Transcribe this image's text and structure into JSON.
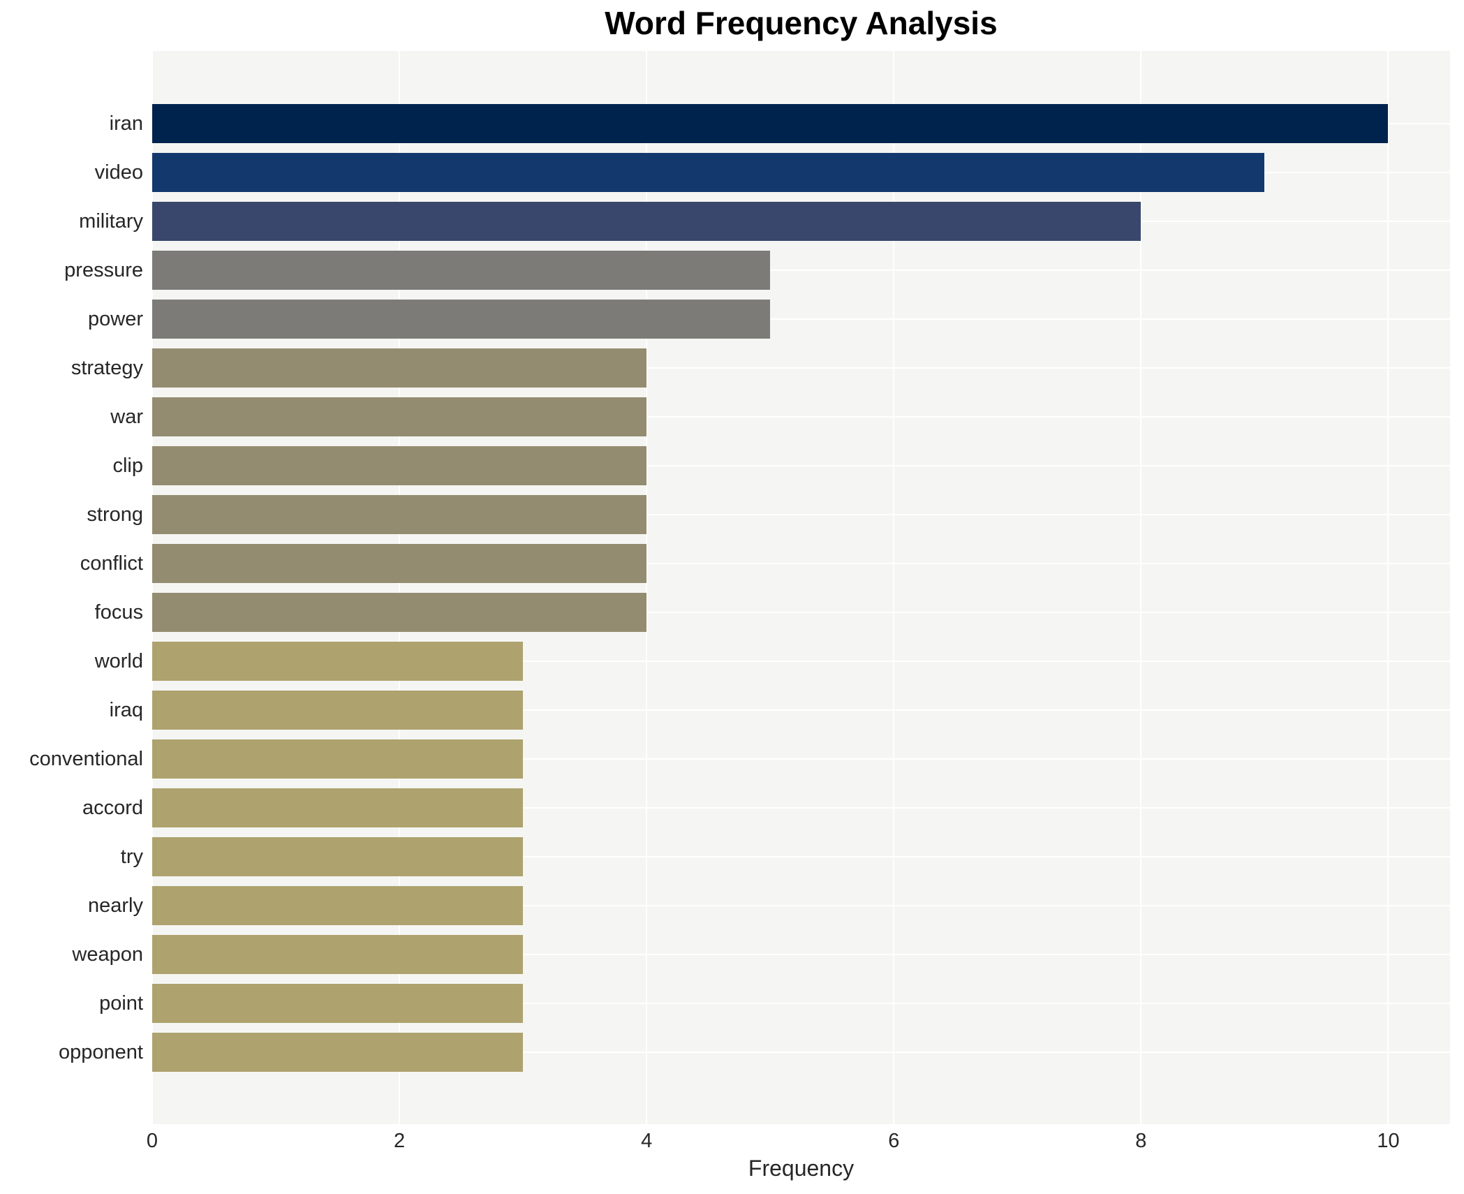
{
  "chart_data": {
    "type": "bar",
    "orientation": "horizontal",
    "title": "Word Frequency Analysis",
    "xlabel": "Frequency",
    "ylabel": "",
    "categories": [
      "iran",
      "video",
      "military",
      "pressure",
      "power",
      "strategy",
      "war",
      "clip",
      "strong",
      "conflict",
      "focus",
      "world",
      "iraq",
      "conventional",
      "accord",
      "try",
      "nearly",
      "weapon",
      "point",
      "opponent"
    ],
    "values": [
      10,
      9,
      8,
      5,
      5,
      4,
      4,
      4,
      4,
      4,
      4,
      3,
      3,
      3,
      3,
      3,
      3,
      3,
      3,
      3
    ],
    "xlim": [
      0,
      10.5
    ],
    "x_ticks": [
      0,
      2,
      4,
      6,
      8,
      10
    ],
    "x_tick_labels": [
      "0",
      "2",
      "4",
      "6",
      "8",
      "10"
    ],
    "grid": true,
    "legend": false,
    "bar_colors": [
      "#00234e",
      "#12386e",
      "#39476c",
      "#7c7b77",
      "#7c7b77",
      "#948c71",
      "#948c71",
      "#948c71",
      "#948c71",
      "#948c71",
      "#948c71",
      "#aea26e",
      "#aea26e",
      "#aea26e",
      "#aea26e",
      "#aea26e",
      "#aea26e",
      "#aea26e",
      "#aea26e",
      "#aea26e"
    ]
  },
  "style_colors": {
    "figure_background": "#ffffff",
    "plot_background": "#f5f6f3",
    "gridline": "#ffffff",
    "title_text": "#000000",
    "axis_text": "#262626"
  }
}
